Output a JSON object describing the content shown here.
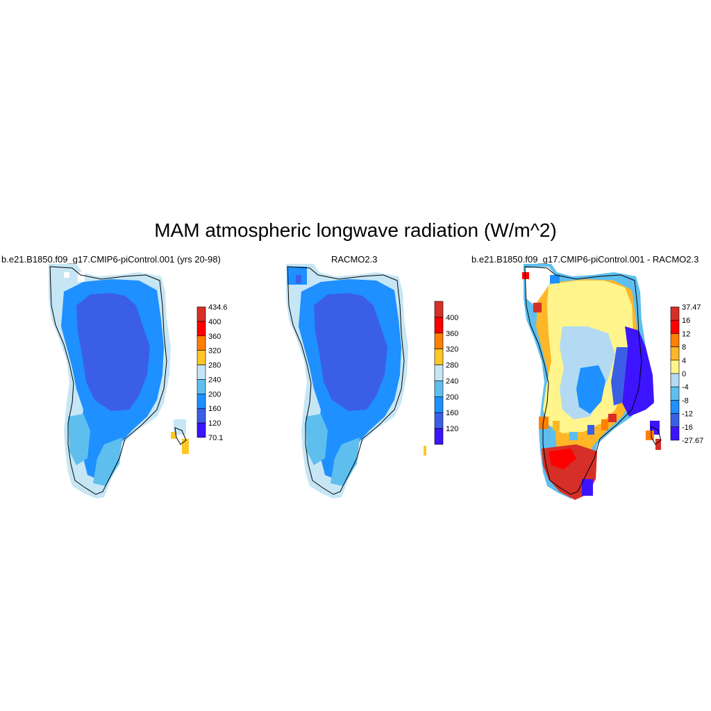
{
  "title": "MAM atmospheric longwave radiation (W/m^2)",
  "chart_data": [
    {
      "type": "heatmap",
      "title": "b.e21.B1850.f09_g17.CMIP6-piControl.001 (yrs 20-98)",
      "region": "Greenland",
      "units": "W/m^2",
      "colorbar": {
        "labels": [
          "434.6",
          "400",
          "360",
          "320",
          "280",
          "240",
          "200",
          "160",
          "120",
          "70.1"
        ],
        "colors": [
          "#d62f27",
          "#ff0000",
          "#ff7f00",
          "#ffc726",
          "#c6e6f5",
          "#5ebfef",
          "#1e90ff",
          "#3a5fe6",
          "#3c14ff"
        ],
        "min": 70.1,
        "max": 434.6
      },
      "summary": {
        "interior": "120-160",
        "margin": "160-200",
        "edge": "200-240"
      }
    },
    {
      "type": "heatmap",
      "title": "RACMO2.3",
      "region": "Greenland",
      "units": "W/m^2",
      "colorbar": {
        "labels": [
          "400",
          "360",
          "320",
          "280",
          "240",
          "200",
          "160",
          "120"
        ],
        "colors": [
          "#d62f27",
          "#ff0000",
          "#ff7f00",
          "#ffc726",
          "#c6e6f5",
          "#5ebfef",
          "#1e90ff",
          "#3a5fe6",
          "#3c14ff"
        ]
      },
      "summary": {
        "interior": "120-160",
        "margin": "160-200",
        "edge": "200-240"
      }
    },
    {
      "type": "heatmap",
      "title": "b.e21.B1850.f09_g17.CMIP6-piControl.001 - RACMO2.3",
      "region": "Greenland",
      "units": "W/m^2",
      "colorbar": {
        "labels": [
          "37.47",
          "16",
          "12",
          "8",
          "4",
          "0",
          "-4",
          "-8",
          "-12",
          "-16",
          "-27.67"
        ],
        "colors": [
          "#d62f27",
          "#ff0000",
          "#ff7f00",
          "#ffb627",
          "#fff58c",
          "#b3daf2",
          "#5ebfef",
          "#1e90ff",
          "#3a5fe6",
          "#3c14ff"
        ],
        "min": -27.67,
        "max": 37.47
      },
      "summary": {
        "interior": "0 to 4",
        "center": "-8 to -4",
        "east_margin": "-27.67 to -12",
        "south": "16 to 37.47"
      }
    }
  ]
}
